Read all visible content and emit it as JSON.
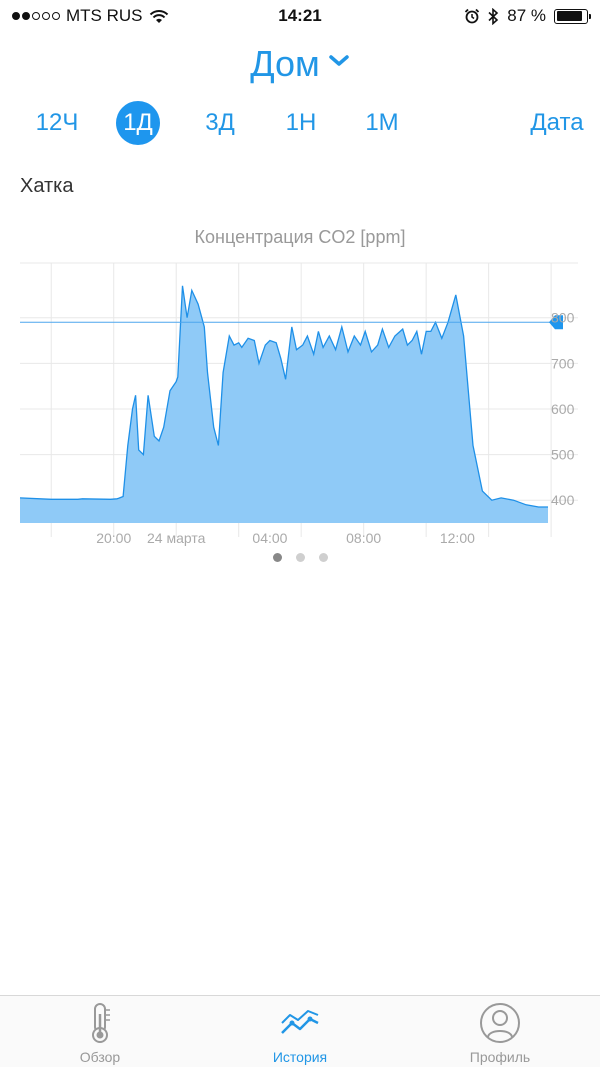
{
  "status_bar": {
    "carrier": "MTS RUS",
    "time": "14:21",
    "battery": "87 %",
    "battery_level": 0.87
  },
  "header": {
    "location": "Дом"
  },
  "ranges": [
    {
      "label": "12Ч",
      "active": false
    },
    {
      "label": "1Д",
      "active": true
    },
    {
      "label": "3Д",
      "active": false
    },
    {
      "label": "1Н",
      "active": false
    },
    {
      "label": "1М",
      "active": false
    }
  ],
  "date_button": "Дата",
  "room": "Хатка",
  "chart_data": {
    "type": "area",
    "title": "Концентрация CO2 [ppm]",
    "xlabel": "",
    "ylabel": "ppm",
    "ylim": [
      350,
      920
    ],
    "x_ticks": [
      "20:00",
      "24 марта",
      "04:00",
      "08:00",
      "12:00"
    ],
    "y_ticks": [
      400,
      500,
      600,
      700,
      800
    ],
    "threshold": 790,
    "color": "#8fcaf7",
    "line_color": "#1e90e8",
    "x_hours": [
      -2.0,
      -1.0,
      0.0,
      -0.15,
      0.9,
      1.1,
      1.15,
      1.3,
      1.45,
      1.6,
      1.7,
      1.8,
      1.95,
      2.1,
      2.3,
      2.45,
      2.6,
      2.8,
      3.0,
      3.05,
      3.2,
      3.35,
      3.5,
      3.7,
      3.9,
      4.0,
      4.2,
      4.35,
      4.5,
      4.7,
      4.85,
      5.0,
      5.1,
      5.3,
      5.5,
      5.65,
      5.85,
      6.0,
      6.2,
      6.35,
      6.5,
      6.7,
      6.85,
      7.05,
      7.2,
      7.4,
      7.55,
      7.7,
      7.9,
      8.1,
      8.3,
      8.5,
      8.7,
      8.9,
      9.05,
      9.25,
      9.45,
      9.6,
      9.8,
      10.0,
      10.25,
      10.4,
      10.55,
      10.7,
      10.85,
      11.0,
      11.15,
      11.3,
      11.5,
      11.7,
      11.95,
      12.2,
      12.5,
      12.8,
      13.1,
      13.4,
      13.8,
      14.2,
      14.6,
      14.9
    ],
    "values": [
      405,
      402,
      403,
      402,
      402,
      403,
      404,
      408,
      520,
      600,
      630,
      510,
      500,
      630,
      540,
      530,
      560,
      640,
      660,
      670,
      870,
      800,
      860,
      830,
      780,
      680,
      560,
      520,
      680,
      760,
      740,
      745,
      735,
      755,
      750,
      700,
      740,
      750,
      745,
      710,
      665,
      780,
      730,
      740,
      760,
      720,
      770,
      735,
      760,
      730,
      780,
      725,
      760,
      740,
      770,
      725,
      740,
      775,
      735,
      760,
      775,
      740,
      750,
      770,
      720,
      770,
      770,
      790,
      755,
      790,
      850,
      760,
      520,
      420,
      400,
      405,
      400,
      390,
      385,
      385
    ],
    "series": [
      {
        "name": "CO2"
      }
    ]
  },
  "pager": {
    "pages": 3,
    "active_index": 0
  },
  "tabbar": {
    "items": [
      {
        "label": "Обзор",
        "active": false
      },
      {
        "label": "История",
        "active": true
      },
      {
        "label": "Профиль",
        "active": false
      }
    ]
  }
}
